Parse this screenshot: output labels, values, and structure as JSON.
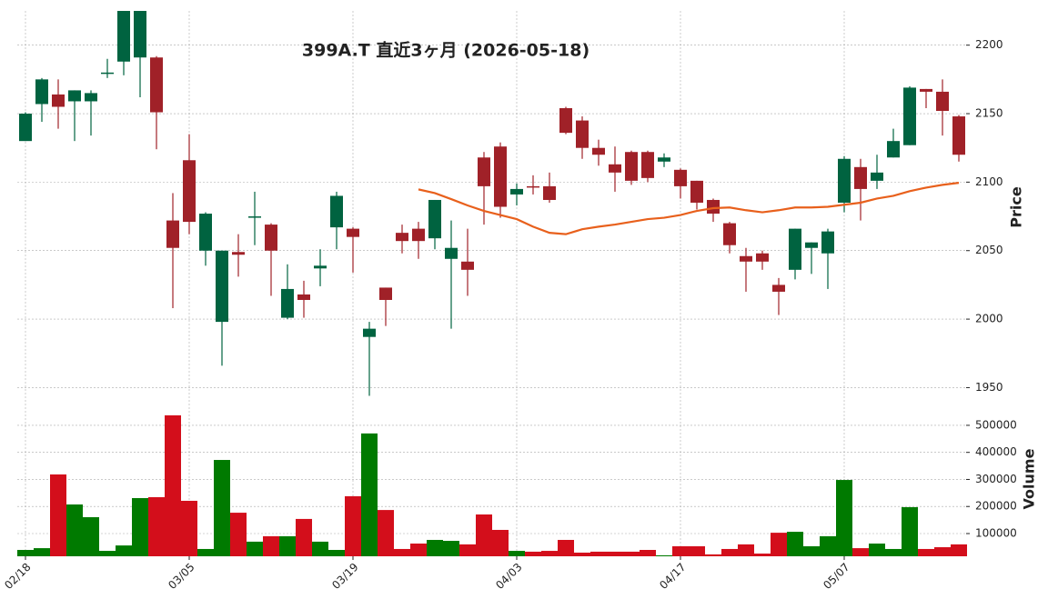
{
  "chart_data": {
    "type": "candlestick",
    "title": "399A.T  直近3ヶ月  (2026-05-18)",
    "categories": [
      "02/18",
      null,
      null,
      null,
      null,
      null,
      null,
      null,
      null,
      null,
      "03/05",
      null,
      null,
      null,
      null,
      null,
      null,
      null,
      null,
      null,
      "03/19",
      null,
      null,
      null,
      null,
      null,
      null,
      null,
      null,
      null,
      "04/03",
      null,
      null,
      null,
      null,
      null,
      null,
      null,
      null,
      null,
      "04/17",
      null,
      null,
      null,
      null,
      null,
      null,
      null,
      null,
      null,
      "05/07",
      null,
      null,
      null,
      null,
      null,
      null,
      null
    ],
    "open": [
      2130,
      2157,
      2164,
      2159,
      2159,
      2179,
      2188,
      2191,
      2191,
      2072,
      2116,
      2050,
      1998,
      2049,
      2074,
      2069,
      2001,
      2018,
      2037,
      2067,
      2066,
      1987,
      2023,
      2063,
      2066,
      2059,
      2044,
      2042,
      2118,
      2126,
      2091,
      2097,
      2097,
      2154,
      2145,
      2125,
      2113,
      2122,
      2122,
      2115,
      2109,
      2101,
      2087,
      2070,
      2046,
      2048,
      2025,
      2036,
      2052,
      2048,
      2085,
      2111,
      2101,
      2118,
      2127,
      2168,
      2166,
      2148
    ],
    "high": [
      2151,
      2176,
      2175,
      2167,
      2167,
      2190,
      2245,
      2250,
      2192,
      2092,
      2135,
      2078,
      2050,
      2062,
      2093,
      2070,
      2040,
      2028,
      2051,
      2093,
      2067,
      1998,
      2023,
      2069,
      2071,
      2087,
      2072,
      2066,
      2122,
      2129,
      2099,
      2105,
      2107,
      2155,
      2148,
      2131,
      2126,
      2123,
      2123,
      2121,
      2110,
      2101,
      2088,
      2071,
      2052,
      2050,
      2030,
      2066,
      2056,
      2066,
      2119,
      2117,
      2120,
      2139,
      2170,
      2168,
      2175,
      2149
    ],
    "low": [
      2130,
      2144,
      2139,
      2130,
      2134,
      2176,
      2178,
      2162,
      2124,
      2008,
      2062,
      2039,
      1966,
      2031,
      2054,
      2017,
      2000,
      2001,
      2024,
      2051,
      2034,
      1944,
      1995,
      2048,
      2044,
      2051,
      1993,
      2017,
      2069,
      2074,
      2083,
      2091,
      2085,
      2135,
      2117,
      2112,
      2093,
      2098,
      2100,
      2111,
      2088,
      2080,
      2071,
      2048,
      2020,
      2036,
      2003,
      2029,
      2033,
      2022,
      2078,
      2072,
      2095,
      2118,
      2127,
      2154,
      2134,
      2115
    ],
    "close": [
      2150,
      2175,
      2155,
      2167,
      2165,
      2180,
      2230,
      2235,
      2151,
      2052,
      2071,
      2077,
      2050,
      2047,
      2075,
      2050,
      2022,
      2014,
      2039,
      2090,
      2060,
      1993,
      2014,
      2057,
      2057,
      2087,
      2052,
      2036,
      2097,
      2082,
      2095,
      2096,
      2087,
      2136,
      2125,
      2120,
      2107,
      2101,
      2103,
      2118,
      2097,
      2085,
      2077,
      2054,
      2042,
      2042,
      2020,
      2066,
      2056,
      2064,
      2117,
      2095,
      2107,
      2130,
      2169,
      2166,
      2152,
      2120
    ],
    "up_color": "#006340",
    "down_color": "#a02128",
    "ma": {
      "color": "#e8601c",
      "values": [
        null,
        null,
        null,
        null,
        null,
        null,
        null,
        null,
        null,
        null,
        null,
        null,
        null,
        null,
        null,
        null,
        null,
        null,
        null,
        null,
        null,
        null,
        null,
        null,
        2094.7,
        2092,
        2087.6,
        2083,
        2079,
        2076,
        2073,
        2067.5,
        2063,
        2062,
        2065.6,
        2067.5,
        2069,
        2071,
        2073,
        2074,
        2076,
        2079,
        2081,
        2081.5,
        2079.5,
        2078,
        2079.5,
        2081.5,
        2081.5,
        2082,
        2083.5,
        2085,
        2088,
        2090,
        2093.4,
        2096,
        2098,
        2099.5
      ]
    },
    "ylabel": "Price",
    "ylim": [
      1941,
      2225
    ],
    "yticks": [
      1950,
      2000,
      2050,
      2100,
      2150,
      2200
    ],
    "grid": true,
    "volume": {
      "ylabel": "Volume",
      "values": [
        39500,
        46000,
        318500,
        207500,
        160500,
        36000,
        56000,
        231000,
        234500,
        537000,
        221000,
        43000,
        372000,
        177000,
        70000,
        90000,
        90000,
        154000,
        70000,
        39500,
        238000,
        470000,
        187000,
        43000,
        63000,
        76500,
        73000,
        60000,
        170500,
        113500,
        36000,
        33000,
        36000,
        76500,
        29500,
        33000,
        33000,
        33000,
        39500,
        19500,
        53000,
        53000,
        23000,
        43000,
        60000,
        26000,
        103000,
        106500,
        53000,
        90000,
        298000,
        46000,
        63000,
        43000,
        197500,
        43000,
        49500,
        60000
      ],
      "up_color": "#007a00",
      "down_color": "#d30e1b",
      "ylim": [
        16000,
        577000
      ],
      "yticks": [
        100000,
        200000,
        300000,
        400000,
        500000
      ]
    }
  }
}
